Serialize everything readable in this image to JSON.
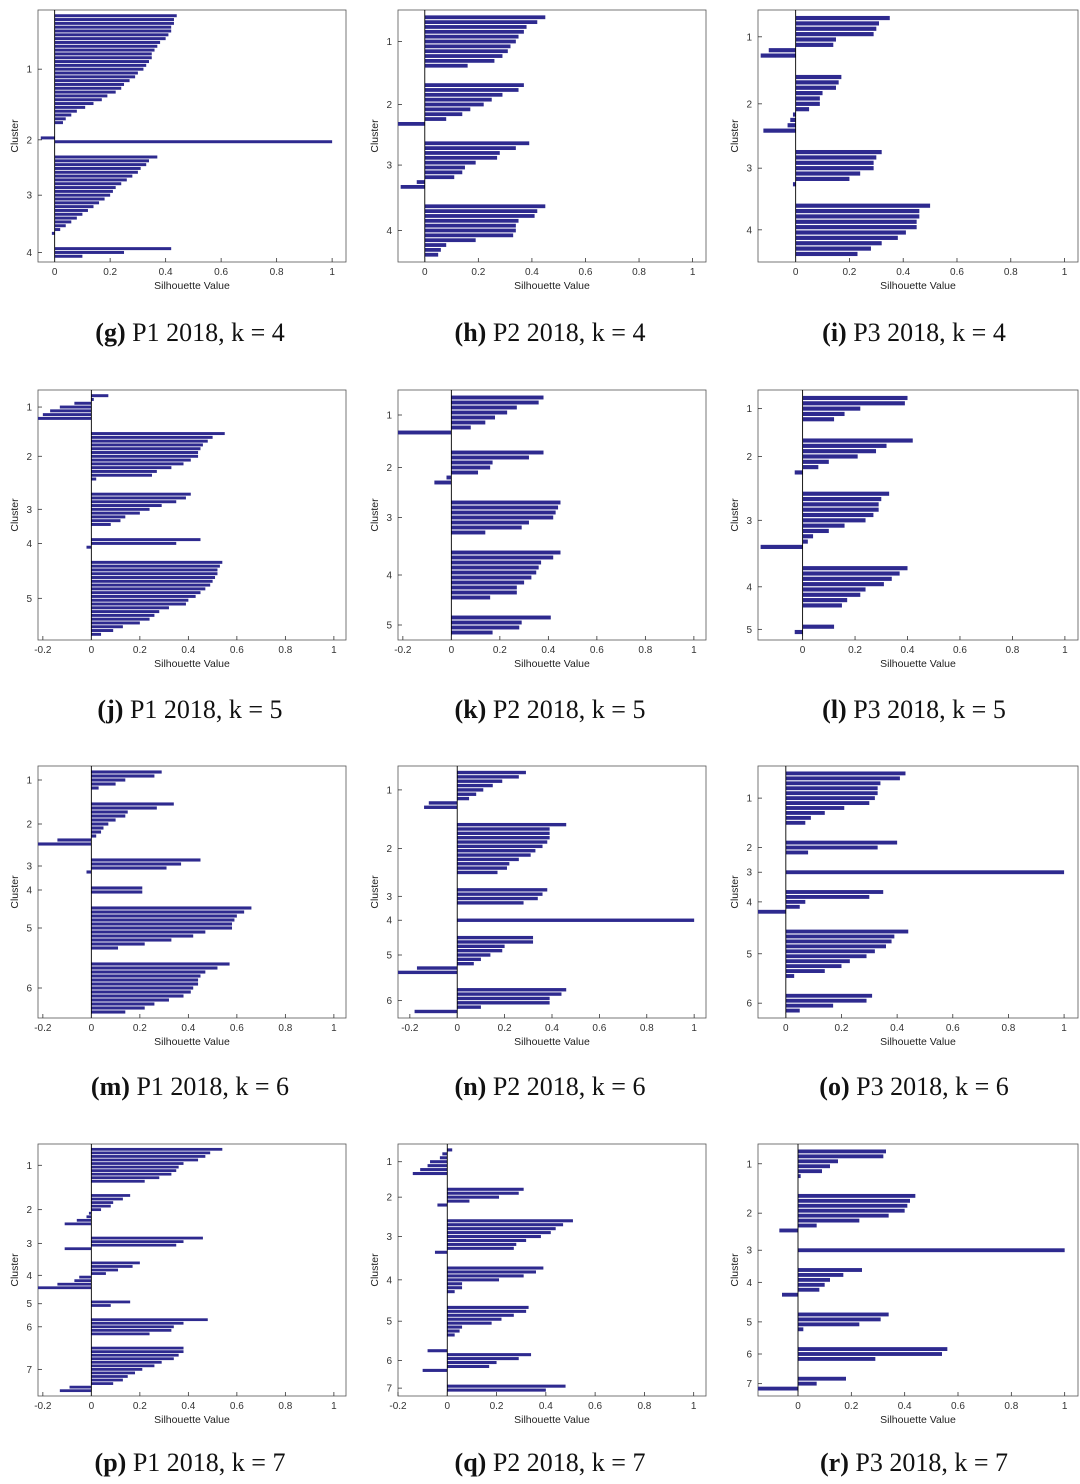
{
  "colors": {
    "bar": "#2e2a8f",
    "axis": "#333333",
    "frame": "#555555"
  },
  "chart_data": [
    {
      "id": "g",
      "type": "bar",
      "orientation": "horizontal",
      "panel_letter": "g",
      "panel_label": "P1 2018, k = 4",
      "xlabel": "Silhouette Value",
      "ylabel": "Cluster",
      "xlim": [
        -0.06,
        1.05
      ],
      "xticks": [
        0,
        0.2,
        0.4,
        0.6,
        0.8,
        1
      ],
      "clusters": [
        {
          "label": "1",
          "values": [
            0.44,
            0.43,
            0.43,
            0.42,
            0.42,
            0.41,
            0.4,
            0.38,
            0.37,
            0.36,
            0.35,
            0.35,
            0.34,
            0.33,
            0.32,
            0.3,
            0.29,
            0.27,
            0.25,
            0.24,
            0.22,
            0.19,
            0.17,
            0.14,
            0.11,
            0.08,
            0.06,
            0.04,
            0.03
          ]
        },
        {
          "label": "2",
          "values": [
            -0.05,
            1.0
          ]
        },
        {
          "label": "3",
          "values": [
            0.37,
            0.34,
            0.33,
            0.31,
            0.3,
            0.28,
            0.26,
            0.24,
            0.22,
            0.21,
            0.2,
            0.18,
            0.16,
            0.14,
            0.12,
            0.1,
            0.08,
            0.06,
            0.04,
            0.02,
            -0.01
          ]
        },
        {
          "label": "4",
          "values": [
            0.42,
            0.25,
            0.1
          ]
        }
      ]
    },
    {
      "id": "h",
      "type": "bar",
      "orientation": "horizontal",
      "panel_letter": "h",
      "panel_label": "P2 2018, k = 4",
      "xlabel": "Silhouette Value",
      "ylabel": "Cluster",
      "xlim": [
        -0.1,
        1.05
      ],
      "xticks": [
        0,
        0.2,
        0.4,
        0.6,
        0.8,
        1
      ],
      "clusters": [
        {
          "label": "1",
          "values": [
            0.45,
            0.42,
            0.38,
            0.37,
            0.35,
            0.34,
            0.32,
            0.31,
            0.29,
            0.26,
            0.16
          ]
        },
        {
          "label": "2",
          "values": [
            0.37,
            0.35,
            0.29,
            0.25,
            0.22,
            0.17,
            0.14,
            0.08,
            -0.1
          ]
        },
        {
          "label": "3",
          "values": [
            0.39,
            0.34,
            0.28,
            0.27,
            0.19,
            0.15,
            0.14,
            0.11,
            -0.03,
            -0.09
          ]
        },
        {
          "label": "4",
          "values": [
            0.45,
            0.42,
            0.41,
            0.35,
            0.34,
            0.34,
            0.33,
            0.19,
            0.08,
            0.06,
            0.05
          ]
        }
      ]
    },
    {
      "id": "i",
      "type": "bar",
      "orientation": "horizontal",
      "panel_letter": "i",
      "panel_label": "P3 2018, k = 4",
      "xlabel": "Silhouette Value",
      "ylabel": "Cluster",
      "xlim": [
        -0.14,
        1.05
      ],
      "xticks": [
        0,
        0.2,
        0.4,
        0.6,
        0.8,
        1
      ],
      "clusters": [
        {
          "label": "1",
          "values": [
            0.35,
            0.31,
            0.3,
            0.29,
            0.15,
            0.14,
            -0.1,
            -0.13
          ]
        },
        {
          "label": "2",
          "values": [
            0.17,
            0.16,
            0.15,
            0.1,
            0.09,
            0.09,
            0.05,
            -0.01,
            -0.02,
            -0.03,
            -0.12
          ]
        },
        {
          "label": "3",
          "values": [
            0.32,
            0.3,
            0.29,
            0.29,
            0.24,
            0.2,
            -0.01
          ]
        },
        {
          "label": "4",
          "values": [
            0.5,
            0.46,
            0.46,
            0.45,
            0.45,
            0.41,
            0.38,
            0.32,
            0.28,
            0.23
          ]
        }
      ]
    },
    {
      "id": "j",
      "type": "bar",
      "orientation": "horizontal",
      "panel_letter": "j",
      "panel_label": "P1 2018, k = 5",
      "xlabel": "Silhouette Value",
      "ylabel": "Cluster",
      "xlim": [
        -0.22,
        1.05
      ],
      "xticks": [
        -0.2,
        0,
        0.2,
        0.4,
        0.6,
        0.8,
        1
      ],
      "clusters": [
        {
          "label": "1",
          "values": [
            0.07,
            0.01,
            -0.07,
            -0.13,
            -0.17,
            -0.2,
            -0.22
          ]
        },
        {
          "label": "2",
          "values": [
            0.55,
            0.5,
            0.48,
            0.46,
            0.45,
            0.44,
            0.44,
            0.41,
            0.38,
            0.33,
            0.27,
            0.25,
            0.02
          ]
        },
        {
          "label": "3",
          "values": [
            0.41,
            0.39,
            0.35,
            0.29,
            0.24,
            0.2,
            0.14,
            0.12,
            0.08
          ]
        },
        {
          "label": "4",
          "values": [
            0.45,
            0.35,
            -0.02
          ]
        },
        {
          "label": "5",
          "values": [
            0.54,
            0.53,
            0.52,
            0.52,
            0.51,
            0.5,
            0.49,
            0.47,
            0.45,
            0.43,
            0.4,
            0.39,
            0.32,
            0.28,
            0.26,
            0.24,
            0.2,
            0.13,
            0.09,
            0.04
          ]
        }
      ]
    },
    {
      "id": "k",
      "type": "bar",
      "orientation": "horizontal",
      "panel_letter": "k",
      "panel_label": "P2 2018, k = 5",
      "xlabel": "Silhouette Value",
      "ylabel": "Cluster",
      "xlim": [
        -0.22,
        1.05
      ],
      "xticks": [
        -0.2,
        0,
        0.2,
        0.4,
        0.6,
        0.8,
        1
      ],
      "clusters": [
        {
          "label": "1",
          "values": [
            0.38,
            0.36,
            0.27,
            0.23,
            0.18,
            0.14,
            0.08,
            -0.22
          ]
        },
        {
          "label": "2",
          "values": [
            0.38,
            0.32,
            0.17,
            0.16,
            0.11,
            -0.02,
            -0.07
          ]
        },
        {
          "label": "3",
          "values": [
            0.45,
            0.44,
            0.43,
            0.42,
            0.32,
            0.29,
            0.14
          ]
        },
        {
          "label": "4",
          "values": [
            0.45,
            0.42,
            0.37,
            0.36,
            0.35,
            0.33,
            0.3,
            0.27,
            0.27,
            0.16
          ]
        },
        {
          "label": "5",
          "values": [
            0.41,
            0.29,
            0.28,
            0.17
          ]
        }
      ]
    },
    {
      "id": "l",
      "type": "bar",
      "orientation": "horizontal",
      "panel_letter": "l",
      "panel_label": "P3 2018, k = 5",
      "xlabel": "Silhouette Value",
      "ylabel": "Cluster",
      "xlim": [
        -0.17,
        1.05
      ],
      "xticks": [
        0,
        0.2,
        0.4,
        0.6,
        0.8,
        1
      ],
      "clusters": [
        {
          "label": "1",
          "values": [
            0.4,
            0.39,
            0.22,
            0.16,
            0.12
          ]
        },
        {
          "label": "2",
          "values": [
            0.42,
            0.32,
            0.28,
            0.21,
            0.1,
            0.06,
            -0.03
          ]
        },
        {
          "label": "3",
          "values": [
            0.33,
            0.3,
            0.29,
            0.29,
            0.27,
            0.24,
            0.16,
            0.1,
            0.04,
            0.02,
            -0.16
          ]
        },
        {
          "label": "4",
          "values": [
            0.4,
            0.37,
            0.34,
            0.31,
            0.24,
            0.22,
            0.17,
            0.15
          ]
        },
        {
          "label": "5",
          "values": [
            0.12,
            -0.03
          ]
        }
      ]
    },
    {
      "id": "m",
      "type": "bar",
      "orientation": "horizontal",
      "panel_letter": "m",
      "panel_label": "P1 2018, k = 6",
      "xlabel": "Silhouette Value",
      "ylabel": "Cluster",
      "xlim": [
        -0.22,
        1.05
      ],
      "xticks": [
        -0.2,
        0,
        0.2,
        0.4,
        0.6,
        0.8,
        1
      ],
      "clusters": [
        {
          "label": "1",
          "values": [
            0.29,
            0.26,
            0.14,
            0.1,
            0.03
          ]
        },
        {
          "label": "2",
          "values": [
            0.34,
            0.27,
            0.15,
            0.14,
            0.1,
            0.07,
            0.05,
            0.04,
            0.02,
            -0.14,
            -0.22
          ]
        },
        {
          "label": "3",
          "values": [
            0.45,
            0.37,
            0.31,
            -0.02
          ]
        },
        {
          "label": "4",
          "values": [
            0.21,
            0.21
          ]
        },
        {
          "label": "5",
          "values": [
            0.66,
            0.63,
            0.6,
            0.59,
            0.58,
            0.58,
            0.47,
            0.42,
            0.33,
            0.22,
            0.11
          ]
        },
        {
          "label": "6",
          "values": [
            0.57,
            0.52,
            0.47,
            0.45,
            0.44,
            0.44,
            0.42,
            0.41,
            0.38,
            0.32,
            0.26,
            0.22,
            0.14
          ]
        }
      ]
    },
    {
      "id": "n",
      "type": "bar",
      "orientation": "horizontal",
      "panel_letter": "n",
      "panel_label": "P2 2018, k = 6",
      "xlabel": "Silhouette Value",
      "ylabel": "Cluster",
      "xlim": [
        -0.25,
        1.05
      ],
      "xticks": [
        -0.2,
        0,
        0.2,
        0.4,
        0.6,
        0.8,
        1
      ],
      "clusters": [
        {
          "label": "1",
          "values": [
            0.29,
            0.26,
            0.19,
            0.15,
            0.11,
            0.08,
            0.05,
            -0.12,
            -0.14
          ]
        },
        {
          "label": "2",
          "values": [
            0.46,
            0.39,
            0.39,
            0.39,
            0.38,
            0.36,
            0.33,
            0.31,
            0.26,
            0.22,
            0.21,
            0.17
          ]
        },
        {
          "label": "3",
          "values": [
            0.38,
            0.36,
            0.34,
            0.28
          ]
        },
        {
          "label": "4",
          "values": [
            1.0
          ]
        },
        {
          "label": "5",
          "values": [
            0.32,
            0.32,
            0.2,
            0.19,
            0.14,
            0.1,
            0.07,
            -0.17,
            -0.25
          ]
        },
        {
          "label": "6",
          "values": [
            0.46,
            0.44,
            0.39,
            0.39,
            0.1,
            -0.18
          ]
        }
      ]
    },
    {
      "id": "o",
      "type": "bar",
      "orientation": "horizontal",
      "panel_letter": "o",
      "panel_label": "P3 2018, k = 6",
      "xlabel": "Silhouette Value",
      "ylabel": "Cluster",
      "xlim": [
        -0.1,
        1.05
      ],
      "xticks": [
        0,
        0.2,
        0.4,
        0.6,
        0.8,
        1
      ],
      "clusters": [
        {
          "label": "1",
          "values": [
            0.43,
            0.41,
            0.34,
            0.33,
            0.33,
            0.32,
            0.3,
            0.21,
            0.14,
            0.09,
            0.07
          ]
        },
        {
          "label": "2",
          "values": [
            0.4,
            0.33,
            0.08
          ]
        },
        {
          "label": "3",
          "values": [
            1.0
          ]
        },
        {
          "label": "4",
          "values": [
            0.35,
            0.3,
            0.07,
            0.05,
            -0.1
          ]
        },
        {
          "label": "5",
          "values": [
            0.44,
            0.39,
            0.38,
            0.36,
            0.32,
            0.29,
            0.23,
            0.2,
            0.14,
            0.03
          ]
        },
        {
          "label": "6",
          "values": [
            0.31,
            0.29,
            0.17,
            0.05
          ]
        }
      ]
    },
    {
      "id": "p",
      "type": "bar",
      "orientation": "horizontal",
      "panel_letter": "p",
      "panel_label": "P1 2018, k = 7",
      "xlabel": "Silhouette Value",
      "ylabel": "Cluster",
      "xlim": [
        -0.22,
        1.05
      ],
      "xticks": [
        -0.2,
        0,
        0.2,
        0.4,
        0.6,
        0.8,
        1
      ],
      "clusters": [
        {
          "label": "1",
          "values": [
            0.54,
            0.49,
            0.47,
            0.44,
            0.38,
            0.36,
            0.35,
            0.33,
            0.28,
            0.22
          ]
        },
        {
          "label": "2",
          "values": [
            0.16,
            0.13,
            0.09,
            0.08,
            0.04,
            -0.01,
            -0.02,
            -0.06,
            -0.11
          ]
        },
        {
          "label": "3",
          "values": [
            0.46,
            0.38,
            0.35,
            -0.11
          ]
        },
        {
          "label": "4",
          "values": [
            0.2,
            0.17,
            0.11,
            0.06,
            -0.05,
            -0.07,
            -0.14,
            -0.22
          ]
        },
        {
          "label": "5",
          "values": [
            0.16,
            0.08
          ]
        },
        {
          "label": "6",
          "values": [
            0.48,
            0.38,
            0.34,
            0.33,
            0.24
          ]
        },
        {
          "label": "7",
          "values": [
            0.38,
            0.38,
            0.36,
            0.34,
            0.29,
            0.26,
            0.21,
            0.18,
            0.15,
            0.13,
            0.09,
            -0.09,
            -0.13
          ]
        }
      ]
    },
    {
      "id": "q",
      "type": "bar",
      "orientation": "horizontal",
      "panel_letter": "q",
      "panel_label": "P2 2018, k = 7",
      "xlabel": "Silhouette Value",
      "ylabel": "Cluster",
      "xlim": [
        -0.2,
        1.05
      ],
      "xticks": [
        -0.2,
        0,
        0.2,
        0.4,
        0.6,
        0.8,
        1
      ],
      "clusters": [
        {
          "label": "1",
          "values": [
            0.02,
            -0.02,
            -0.03,
            -0.07,
            -0.08,
            -0.11,
            -0.14
          ]
        },
        {
          "label": "2",
          "values": [
            0.31,
            0.29,
            0.21,
            0.09,
            -0.04
          ]
        },
        {
          "label": "3",
          "values": [
            0.51,
            0.47,
            0.44,
            0.42,
            0.38,
            0.32,
            0.28,
            0.27,
            -0.05
          ]
        },
        {
          "label": "4",
          "values": [
            0.39,
            0.36,
            0.31,
            0.21,
            0.06,
            0.06,
            0.03
          ]
        },
        {
          "label": "5",
          "values": [
            0.33,
            0.32,
            0.27,
            0.22,
            0.18,
            0.06,
            0.05,
            0.03
          ]
        },
        {
          "label": "6",
          "values": [
            -0.08,
            0.34,
            0.29,
            0.2,
            0.17,
            -0.1
          ]
        },
        {
          "label": "7",
          "values": [
            0.48,
            0.4
          ]
        }
      ]
    },
    {
      "id": "r",
      "type": "bar",
      "orientation": "horizontal",
      "panel_letter": "r",
      "panel_label": "P3 2018, k = 7",
      "xlabel": "Silhouette Value",
      "ylabel": "Cluster",
      "xlim": [
        -0.15,
        1.05
      ],
      "xticks": [
        0,
        0.2,
        0.4,
        0.6,
        0.8,
        1
      ],
      "clusters": [
        {
          "label": "1",
          "values": [
            0.33,
            0.32,
            0.15,
            0.12,
            0.09,
            0.01
          ]
        },
        {
          "label": "2",
          "values": [
            0.44,
            0.42,
            0.41,
            0.4,
            0.34,
            0.23,
            0.07,
            -0.07
          ]
        },
        {
          "label": "3",
          "values": [
            1.0
          ]
        },
        {
          "label": "4",
          "values": [
            0.24,
            0.17,
            0.12,
            0.1,
            0.08,
            -0.06
          ]
        },
        {
          "label": "5",
          "values": [
            0.34,
            0.31,
            0.23,
            0.02
          ]
        },
        {
          "label": "6",
          "values": [
            0.56,
            0.54,
            0.29
          ]
        },
        {
          "label": "7",
          "values": [
            0.18,
            0.07,
            -0.15
          ]
        }
      ]
    }
  ]
}
